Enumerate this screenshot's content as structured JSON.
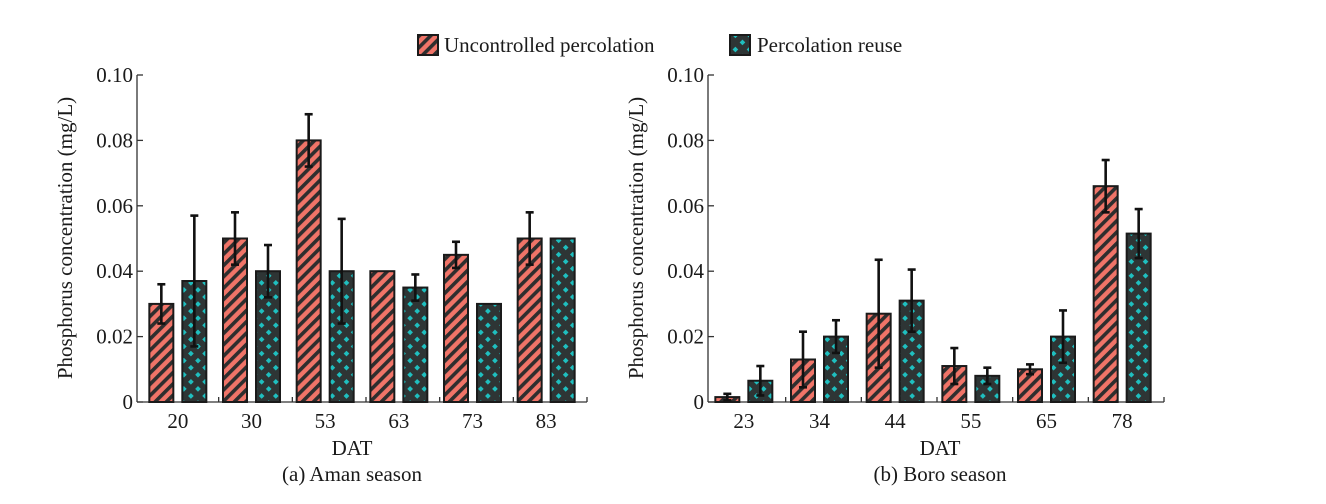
{
  "legend": {
    "items": [
      {
        "label": "Uncontrolled percolation",
        "pattern": "stripes",
        "color": "#f07468"
      },
      {
        "label": "Percolation reuse",
        "pattern": "dots",
        "color": "#1fbfbf"
      }
    ]
  },
  "chart_data": [
    {
      "type": "bar",
      "title": "(a) Aman season",
      "xlabel": "DAT",
      "ylabel": "Phosphorus concentration (mg/L)",
      "ylim": [
        0,
        0.1
      ],
      "yticks": [
        "0",
        "0.02",
        "0.04",
        "0.06",
        "0.08",
        "0.10"
      ],
      "ytick_values": [
        0,
        0.02,
        0.04,
        0.06,
        0.08,
        0.1
      ],
      "categories": [
        "20",
        "30",
        "53",
        "63",
        "73",
        "83"
      ],
      "grid": false,
      "legend_position": "top-center",
      "series": [
        {
          "name": "Uncontrolled percolation",
          "values": [
            0.03,
            0.05,
            0.08,
            0.04,
            0.045,
            0.05
          ],
          "errors": [
            0.006,
            0.008,
            0.008,
            0,
            0.004,
            0.008
          ]
        },
        {
          "name": "Percolation reuse",
          "values": [
            0.037,
            0.04,
            0.04,
            0.035,
            0.03,
            0.05
          ],
          "errors": [
            0.02,
            0.008,
            0.016,
            0.004,
            0,
            0
          ]
        }
      ]
    },
    {
      "type": "bar",
      "title": "(b) Boro season",
      "xlabel": "DAT",
      "ylabel": "Phosphorus concentration (mg/L)",
      "ylim": [
        0,
        0.1
      ],
      "yticks": [
        "0",
        "0.02",
        "0.04",
        "0.06",
        "0.08",
        "0.10"
      ],
      "ytick_values": [
        0,
        0.02,
        0.04,
        0.06,
        0.08,
        0.1
      ],
      "categories": [
        "23",
        "34",
        "44",
        "55",
        "65",
        "78"
      ],
      "grid": false,
      "legend_position": "top-center",
      "series": [
        {
          "name": "Uncontrolled percolation",
          "values": [
            0.0015,
            0.013,
            0.027,
            0.011,
            0.01,
            0.066
          ],
          "errors": [
            0.001,
            0.0085,
            0.0165,
            0.0055,
            0.0015,
            0.008
          ]
        },
        {
          "name": "Percolation reuse",
          "values": [
            0.0065,
            0.02,
            0.031,
            0.008,
            0.02,
            0.0515
          ],
          "errors": [
            0.0045,
            0.005,
            0.0095,
            0.0025,
            0.008,
            0.0075
          ]
        }
      ]
    }
  ]
}
